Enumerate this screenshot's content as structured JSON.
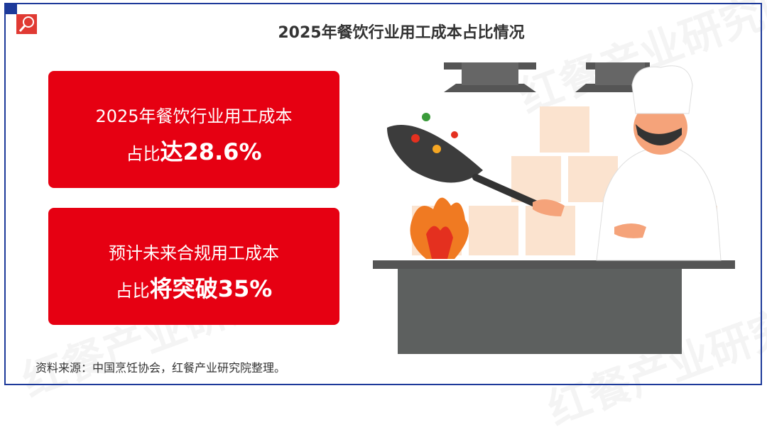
{
  "title": "2025年餐饮行业用工成本占比情况",
  "cards": [
    {
      "line1": "2025年餐饮行业用工成本",
      "line2_prefix": "占比",
      "line2_emph": "达28.6%"
    },
    {
      "line1": "预计未来合规用工成本",
      "line2_prefix": "占比",
      "line2_emph": "将突破35%"
    }
  ],
  "source": "资料来源：中国烹饪协会，红餐产业研究院整理。",
  "watermark": "红餐产业研究院",
  "colors": {
    "accent": "#e60012",
    "frame": "#1d3a9a"
  },
  "icons": {
    "logo": "magnifier-icon"
  }
}
